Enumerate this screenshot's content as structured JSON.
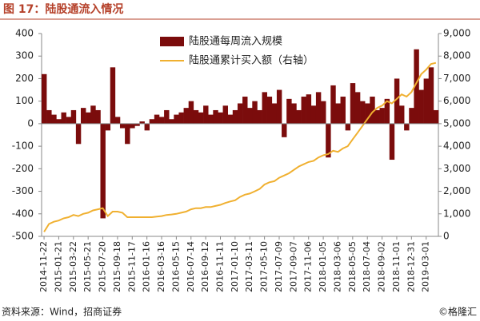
{
  "chart_data": {
    "type": "bar",
    "title": "图 17：陆股通流入情况",
    "source": "资料来源：Wind，招商证券",
    "watermark": "©格隆汇",
    "categories": [
      "2014-11-22",
      null,
      null,
      "2015-01-21",
      null,
      null,
      "2015-03-22",
      null,
      null,
      "2015-05-21",
      null,
      null,
      "2015-07-20",
      null,
      null,
      "2015-09-18",
      null,
      null,
      "2015-11-17",
      null,
      null,
      "2016-01-16",
      null,
      null,
      "2016-03-16",
      null,
      null,
      "2016-05-15",
      null,
      null,
      "2016-07-14",
      null,
      null,
      "2016-09-12",
      null,
      null,
      "2016-11-11",
      null,
      null,
      "2017-01-10",
      null,
      null,
      "2017-03-11",
      null,
      null,
      "2017-05-10",
      null,
      null,
      "2017-07-09",
      null,
      null,
      "2017-09-07",
      null,
      null,
      "2017-11-06",
      null,
      null,
      "2018-01-05",
      null,
      null,
      "2018-03-06",
      null,
      null,
      "2018-05-05",
      null,
      null,
      "2018-07-04",
      null,
      null,
      "2018-09-02",
      null,
      null,
      "2018-11-01",
      null,
      null,
      "2018-12-31",
      null,
      null,
      "2019-03-01",
      null,
      null
    ],
    "series": [
      {
        "name": "陆股通每周流入规模",
        "type": "bar",
        "color": "#7b0c0c",
        "values": [
          220,
          60,
          40,
          20,
          50,
          30,
          60,
          -90,
          70,
          50,
          80,
          60,
          -420,
          -30,
          250,
          30,
          -20,
          -90,
          -20,
          -10,
          10,
          -30,
          20,
          40,
          30,
          60,
          20,
          40,
          50,
          70,
          100,
          60,
          50,
          80,
          40,
          60,
          50,
          80,
          40,
          60,
          90,
          120,
          70,
          100,
          60,
          140,
          120,
          90,
          150,
          -60,
          110,
          90,
          60,
          120,
          130,
          80,
          140,
          100,
          -150,
          170,
          90,
          120,
          -30,
          180,
          140,
          100,
          90,
          120,
          60,
          70,
          110,
          -160,
          200,
          80,
          -30,
          70,
          330,
          150,
          200,
          250,
          60
        ]
      },
      {
        "name": "陆股通累计买入额（右轴）",
        "type": "line",
        "axis": "y2",
        "color": "#f0b030",
        "values": [
          200,
          550,
          650,
          700,
          800,
          850,
          950,
          900,
          1000,
          1050,
          1150,
          1200,
          1250,
          900,
          1100,
          1100,
          1050,
          850,
          850,
          850,
          850,
          850,
          850,
          880,
          900,
          950,
          970,
          1000,
          1050,
          1100,
          1200,
          1250,
          1250,
          1300,
          1300,
          1350,
          1400,
          1480,
          1550,
          1600,
          1750,
          1850,
          1900,
          2000,
          2100,
          2300,
          2400,
          2450,
          2600,
          2700,
          2800,
          2950,
          3100,
          3200,
          3300,
          3350,
          3500,
          3600,
          3650,
          3800,
          3750,
          3900,
          4000,
          4300,
          4600,
          4900,
          5200,
          5500,
          5700,
          5800,
          6000,
          5900,
          6100,
          6300,
          6200,
          6400,
          6800,
          7200,
          7400,
          7650,
          7700
        ]
      }
    ],
    "ylim": [
      -500,
      400
    ],
    "yticks": [
      -500,
      -400,
      -300,
      -200,
      -100,
      0,
      100,
      200,
      300,
      400
    ],
    "y2lim": [
      0,
      9000
    ],
    "y2ticks": [
      0,
      {
        "value": 1000,
        "label": "1,000"
      },
      {
        "value": 2000,
        "label": "2,000"
      },
      {
        "value": 3000,
        "label": "3,000"
      },
      {
        "value": 4000,
        "label": "4,000"
      },
      {
        "value": 5000,
        "label": "5,000"
      },
      {
        "value": 6000,
        "label": "6,000"
      },
      {
        "value": 7000,
        "label": "7,000"
      },
      {
        "value": 8000,
        "label": "8,000"
      },
      {
        "value": 9000,
        "label": "9,000"
      }
    ],
    "grid": false
  }
}
